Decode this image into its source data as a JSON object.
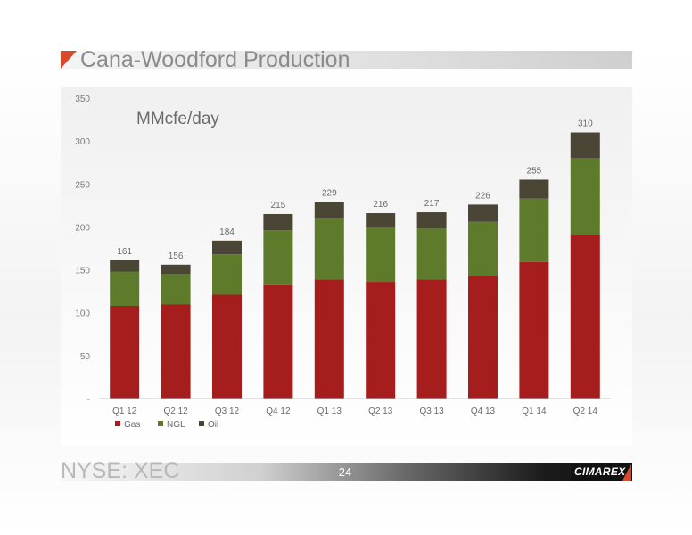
{
  "slide": {
    "title": "Cana-Woodford Production",
    "footer_ticker": "NYSE: XEC",
    "page_number": "24",
    "logo_text": "CIMAREX"
  },
  "chart_data": {
    "type": "bar",
    "stacked": true,
    "annotation": "MMcfe/day",
    "categories": [
      "Q1 12",
      "Q2 12",
      "Q3 12",
      "Q4 12",
      "Q1 13",
      "Q2 13",
      "Q3 13",
      "Q4 13",
      "Q1 14",
      "Q2 14"
    ],
    "series": [
      {
        "name": "Gas",
        "color": "#a51d1d",
        "values": [
          108,
          110,
          121,
          132,
          139,
          136,
          139,
          143,
          159,
          191
        ]
      },
      {
        "name": "NGL",
        "color": "#5e7b2c",
        "values": [
          40,
          35,
          47,
          64,
          71,
          63,
          59,
          63,
          74,
          89
        ]
      },
      {
        "name": "Oil",
        "color": "#4a4534",
        "values": [
          13,
          11,
          16,
          19,
          19,
          17,
          19,
          20,
          22,
          30
        ]
      }
    ],
    "totals": [
      161,
      156,
      184,
      215,
      229,
      216,
      217,
      226,
      255,
      310
    ],
    "total_labels": [
      "161",
      "156",
      "184",
      "215",
      "229",
      "216",
      "217",
      "226",
      "255",
      "310"
    ],
    "y_ticks": [
      0,
      50,
      100,
      150,
      200,
      250,
      300,
      350
    ],
    "y_tick_labels": [
      "-",
      "50",
      "100",
      "150",
      "200",
      "250",
      "300",
      "350"
    ],
    "ylim": [
      0,
      350
    ],
    "grid": false,
    "legend_position": "bottom-left"
  }
}
